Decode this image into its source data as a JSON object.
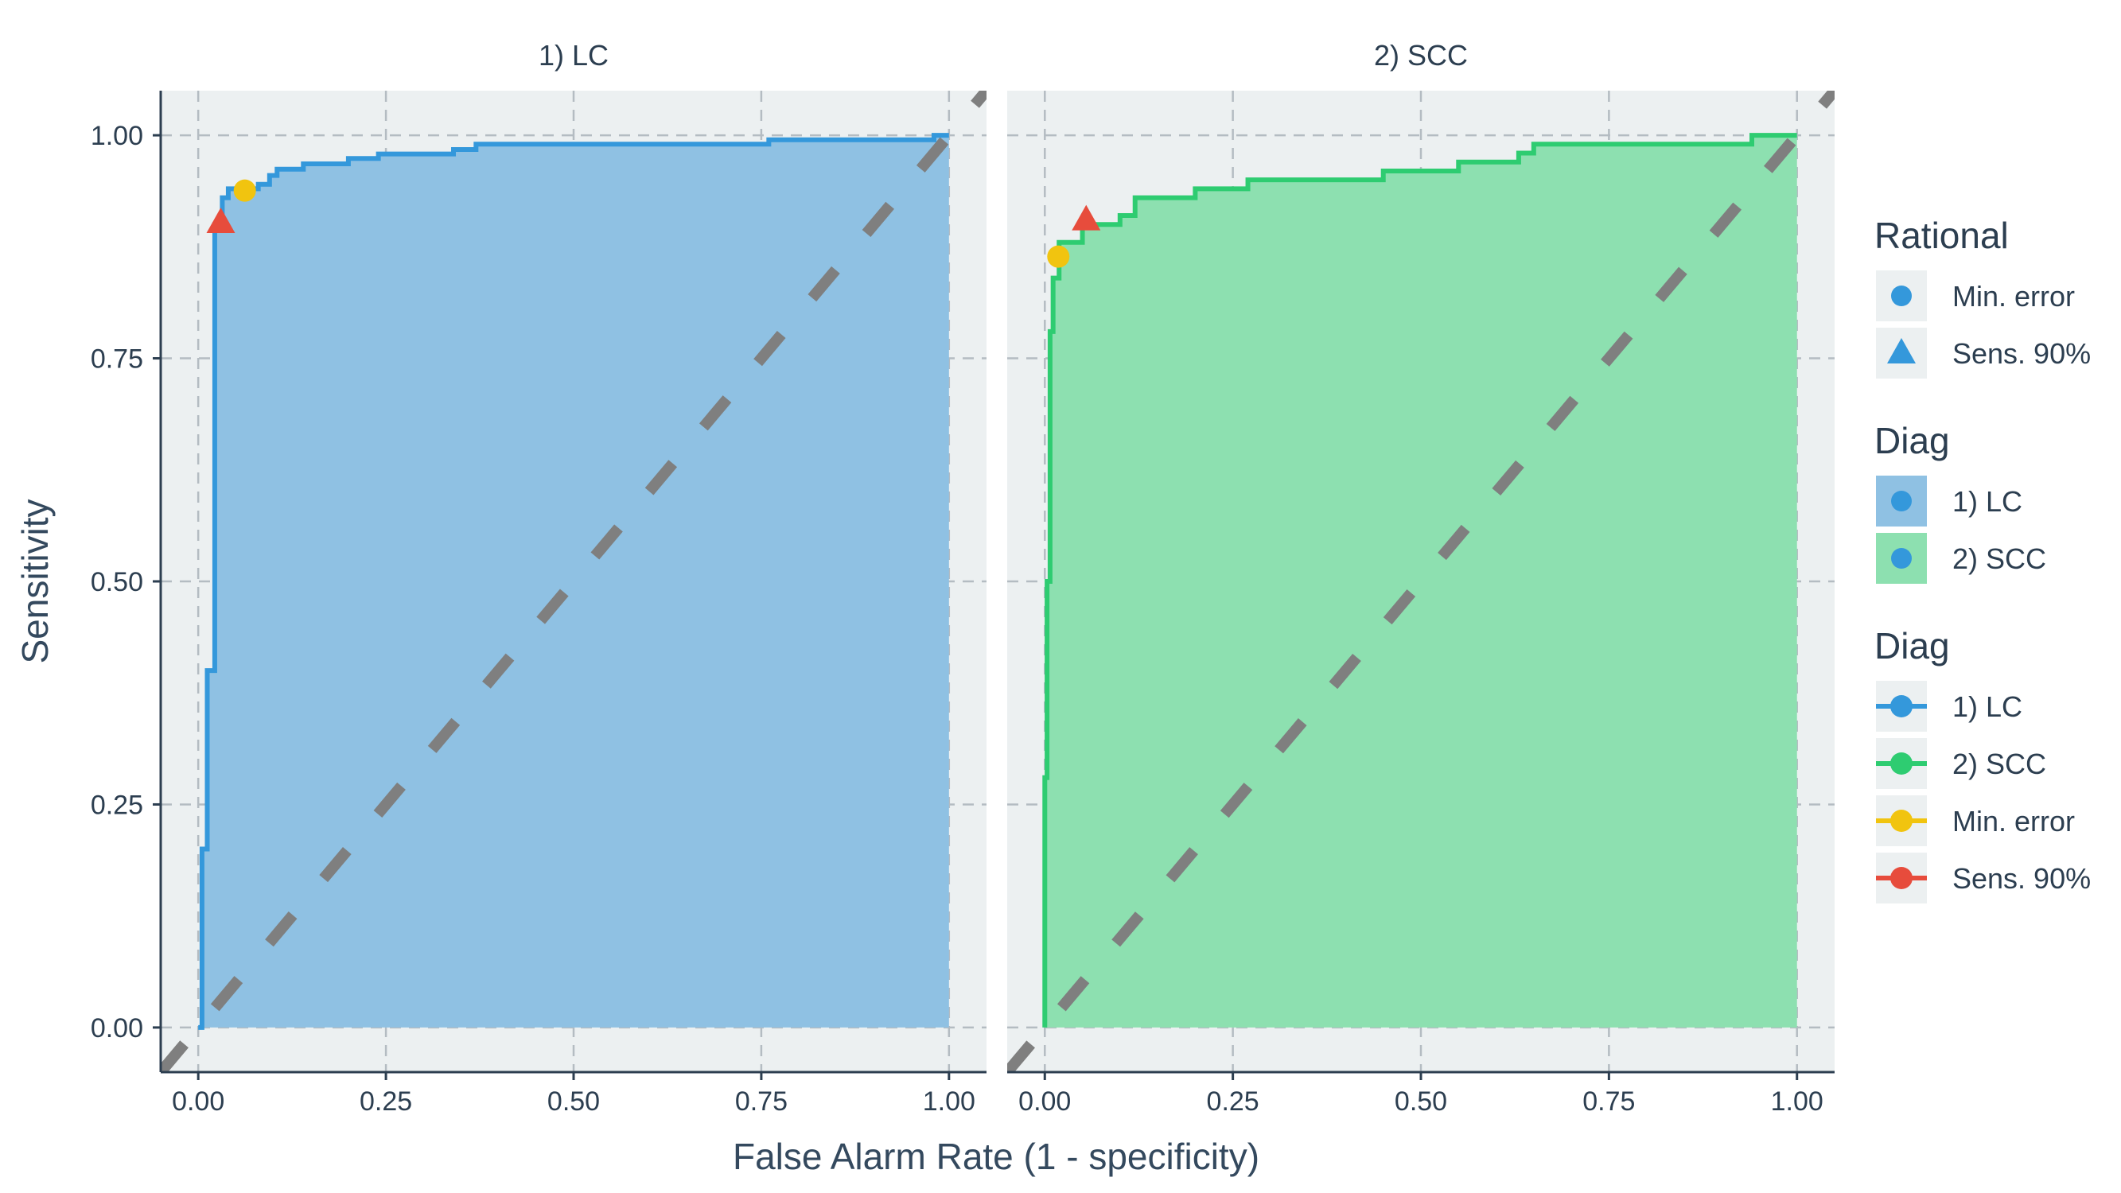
{
  "chart_data": {
    "type": "line",
    "xlabel": "False Alarm Rate (1 - specificity)",
    "ylabel": "Sensitivity",
    "xlim": [
      -0.05,
      1.05
    ],
    "ylim": [
      -0.05,
      1.05
    ],
    "x_ticks": [
      "0.00",
      "0.25",
      "0.50",
      "0.75",
      "1.00"
    ],
    "y_ticks": [
      "0.00",
      "0.25",
      "0.50",
      "0.75",
      "1.00"
    ],
    "grid": true,
    "reference_line": {
      "from": [
        0,
        0
      ],
      "to": [
        1,
        1
      ],
      "style": "dashed",
      "color": "#7f7f7f"
    },
    "panels": [
      {
        "title": "1) LC",
        "color": "#3498db",
        "fill_color": "#8fc1e3",
        "roc": [
          [
            0,
            0
          ],
          [
            0.005,
            0
          ],
          [
            0.005,
            0.2
          ],
          [
            0.012,
            0.2
          ],
          [
            0.012,
            0.4
          ],
          [
            0.022,
            0.4
          ],
          [
            0.022,
            0.9
          ],
          [
            0.032,
            0.9
          ],
          [
            0.032,
            0.93
          ],
          [
            0.04,
            0.93
          ],
          [
            0.04,
            0.94
          ],
          [
            0.08,
            0.94
          ],
          [
            0.08,
            0.945
          ],
          [
            0.095,
            0.945
          ],
          [
            0.095,
            0.955
          ],
          [
            0.105,
            0.955
          ],
          [
            0.105,
            0.962
          ],
          [
            0.14,
            0.962
          ],
          [
            0.14,
            0.968
          ],
          [
            0.2,
            0.968
          ],
          [
            0.2,
            0.974
          ],
          [
            0.24,
            0.974
          ],
          [
            0.24,
            0.979
          ],
          [
            0.34,
            0.979
          ],
          [
            0.34,
            0.984
          ],
          [
            0.37,
            0.984
          ],
          [
            0.37,
            0.99
          ],
          [
            0.76,
            0.99
          ],
          [
            0.76,
            0.995
          ],
          [
            0.98,
            0.995
          ],
          [
            0.98,
            1.0
          ],
          [
            1.0,
            1.0
          ]
        ],
        "min_error": [
          0.062,
          0.938
        ],
        "sens_90": [
          0.03,
          0.902
        ]
      },
      {
        "title": "2) SCC",
        "color": "#2ecc71",
        "fill_color": "#8de0b0",
        "roc": [
          [
            0,
            0
          ],
          [
            0,
            0.28
          ],
          [
            0.003,
            0.28
          ],
          [
            0.003,
            0.5
          ],
          [
            0.007,
            0.5
          ],
          [
            0.007,
            0.78
          ],
          [
            0.011,
            0.78
          ],
          [
            0.011,
            0.84
          ],
          [
            0.019,
            0.84
          ],
          [
            0.019,
            0.88
          ],
          [
            0.05,
            0.88
          ],
          [
            0.05,
            0.9
          ],
          [
            0.1,
            0.9
          ],
          [
            0.1,
            0.91
          ],
          [
            0.12,
            0.91
          ],
          [
            0.12,
            0.93
          ],
          [
            0.2,
            0.93
          ],
          [
            0.2,
            0.94
          ],
          [
            0.27,
            0.94
          ],
          [
            0.27,
            0.95
          ],
          [
            0.45,
            0.95
          ],
          [
            0.45,
            0.96
          ],
          [
            0.55,
            0.96
          ],
          [
            0.55,
            0.97
          ],
          [
            0.63,
            0.97
          ],
          [
            0.63,
            0.98
          ],
          [
            0.65,
            0.98
          ],
          [
            0.65,
            0.99
          ],
          [
            0.94,
            0.99
          ],
          [
            0.94,
            1.0
          ],
          [
            1.0,
            1.0
          ]
        ],
        "min_error": [
          0.018,
          0.864
        ],
        "sens_90": [
          0.055,
          0.905
        ]
      }
    ],
    "legends": [
      {
        "title": "Rational",
        "items": [
          {
            "label": "Min. error",
            "key": "point",
            "color": "#3498db"
          },
          {
            "label": "Sens. 90%",
            "key": "triangle",
            "color": "#3498db"
          }
        ]
      },
      {
        "title": "Diag",
        "items": [
          {
            "label": "1) LC",
            "key": "fill-point",
            "color": "#3498db",
            "fill": "#8fc1e3"
          },
          {
            "label": "2) SCC",
            "key": "fill-point",
            "color": "#3498db",
            "fill": "#8de0b0"
          }
        ]
      },
      {
        "title": "Diag",
        "items": [
          {
            "label": "1) LC",
            "key": "line-point",
            "color": "#3498db"
          },
          {
            "label": "2) SCC",
            "key": "line-point",
            "color": "#2ecc71"
          },
          {
            "label": "Min. error",
            "key": "line-point",
            "color": "#f1c40f"
          },
          {
            "label": "Sens. 90%",
            "key": "line-point",
            "color": "#e74c3c"
          }
        ]
      }
    ],
    "marker_colors": {
      "min_error": "#f1c40f",
      "sens_90": "#e74c3c"
    },
    "panel_bg": "#ecf0f1"
  }
}
